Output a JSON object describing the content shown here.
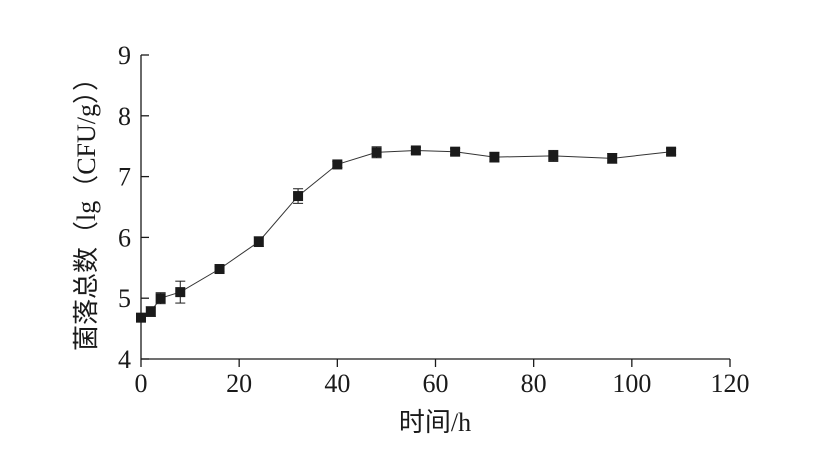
{
  "chart_data": {
    "type": "line",
    "xlabel": "时间/h",
    "ylabel": "菌落总数（lg（CFU/g））",
    "xlim": [
      0,
      120
    ],
    "ylim": [
      4,
      9
    ],
    "x_ticks": [
      "0",
      "20",
      "40",
      "60",
      "80",
      "100",
      "120"
    ],
    "y_ticks": [
      "4",
      "5",
      "6",
      "7",
      "8",
      "9"
    ],
    "grid": false,
    "marker": "square",
    "series": [
      {
        "points": [
          {
            "x": 0,
            "y": 4.68,
            "err": 0.05
          },
          {
            "x": 2,
            "y": 4.78,
            "err": 0.08
          },
          {
            "x": 4,
            "y": 5.0,
            "err": 0.09
          },
          {
            "x": 8,
            "y": 5.1,
            "err": 0.18
          },
          {
            "x": 16,
            "y": 5.48,
            "err": 0.04
          },
          {
            "x": 24,
            "y": 5.93,
            "err": 0.08
          },
          {
            "x": 32,
            "y": 6.68,
            "err": 0.12
          },
          {
            "x": 40,
            "y": 7.2,
            "err": 0.05
          },
          {
            "x": 48,
            "y": 7.4,
            "err": 0.09
          },
          {
            "x": 56,
            "y": 7.43,
            "err": 0.05
          },
          {
            "x": 64,
            "y": 7.41,
            "err": 0.05
          },
          {
            "x": 72,
            "y": 7.32,
            "err": 0.08
          },
          {
            "x": 84,
            "y": 7.34,
            "err": 0.09
          },
          {
            "x": 96,
            "y": 7.3,
            "err": 0.08
          },
          {
            "x": 108,
            "y": 7.41,
            "err": 0.05
          }
        ]
      }
    ]
  },
  "colors": {
    "line": "#333333",
    "marker": "#1a1a1a",
    "axis": "#1a1a1a"
  }
}
